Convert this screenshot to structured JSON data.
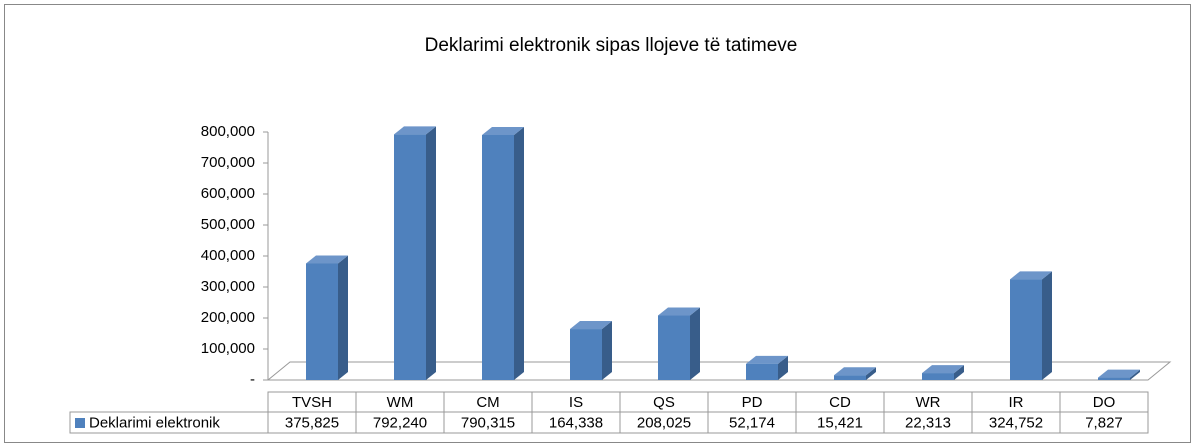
{
  "chart_data": {
    "type": "bar3d",
    "title": "Deklarimi elektronik sipas llojeve të tatimeve",
    "categories": [
      "TVSH",
      "WM",
      "CM",
      "IS",
      "QS",
      "PD",
      "CD",
      "WR",
      "IR",
      "DO"
    ],
    "series": [
      {
        "name": "Deklarimi elektronik",
        "color": "#4f81bd",
        "values": [
          375825,
          792240,
          790315,
          164338,
          208025,
          52174,
          15421,
          22313,
          324752,
          7827
        ],
        "value_labels": [
          "375,825",
          "792,240",
          "790,315",
          "164,338",
          "208,025",
          "52,174",
          "15,421",
          "22,313",
          "324,752",
          "7,827"
        ]
      }
    ],
    "ylim": [
      0,
      800000
    ],
    "yticks": [
      {
        "value": 0,
        "label": "-"
      },
      {
        "value": 100000,
        "label": "100,000"
      },
      {
        "value": 200000,
        "label": "200,000"
      },
      {
        "value": 300000,
        "label": "300,000"
      },
      {
        "value": 400000,
        "label": "400,000"
      },
      {
        "value": 500000,
        "label": "500,000"
      },
      {
        "value": 600000,
        "label": "600,000"
      },
      {
        "value": 700000,
        "label": "700,000"
      },
      {
        "value": 800000,
        "label": "800,000"
      }
    ],
    "grid": false,
    "data_table": true
  }
}
